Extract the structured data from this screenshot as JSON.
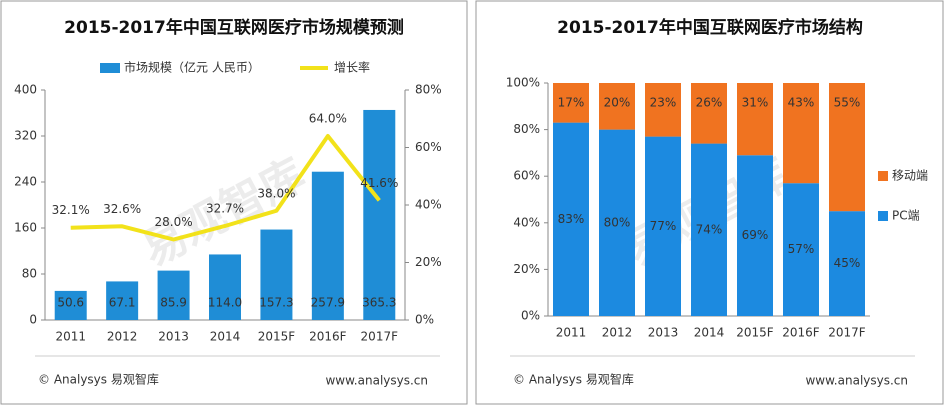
{
  "chart_data": [
    {
      "type": "bar",
      "title": "2015-2017年中国互联网医疗市场规模预测",
      "categories": [
        "2011",
        "2012",
        "2013",
        "2014",
        "2015F",
        "2016F",
        "2017F"
      ],
      "series": [
        {
          "name": "市场规模（亿元 人民币）",
          "color": "#1f8dd6",
          "values": [
            50.6,
            67.1,
            85.9,
            114.0,
            157.3,
            257.9,
            365.3
          ],
          "value_labels": [
            "50.6",
            "67.1",
            "85.9",
            "114.0",
            "157.3",
            "257.9",
            "365.3"
          ]
        },
        {
          "name": "增长率",
          "color": "#f2e21a",
          "axis": "y2",
          "values": [
            32.1,
            32.6,
            28.0,
            32.7,
            38.0,
            64.0,
            41.6
          ],
          "value_labels": [
            "32.1%",
            "32.6%",
            "28.0%",
            "32.7%",
            "38.0%",
            "64.0%",
            "41.6%"
          ]
        }
      ],
      "ylim": [
        0,
        400
      ],
      "yticks": [
        0,
        80,
        160,
        240,
        320,
        400
      ],
      "y2lim": [
        0,
        80
      ],
      "y2ticks": [
        {
          "value": 0,
          "label": "0%"
        },
        {
          "value": 20,
          "label": "20%"
        },
        {
          "value": 40,
          "label": "40%"
        },
        {
          "value": 60,
          "label": "60%"
        },
        {
          "value": 80,
          "label": "80%"
        }
      ],
      "watermark": "易观智库",
      "source": "© Analysys 易观智库",
      "url": "www.analysys.cn"
    },
    {
      "type": "stacked_bar",
      "title": "2015-2017年中国互联网医疗市场结构",
      "categories": [
        "2011",
        "2012",
        "2013",
        "2014",
        "2015F",
        "2016F",
        "2017F"
      ],
      "series": [
        {
          "name": "PC端",
          "color": "#1c8ae0",
          "values": [
            83,
            80,
            77,
            74,
            69,
            57,
            45
          ],
          "value_labels": [
            "83%",
            "80%",
            "77%",
            "74%",
            "69%",
            "57%",
            "45%"
          ]
        },
        {
          "name": "移动端",
          "color": "#f07320",
          "values": [
            17,
            20,
            23,
            26,
            31,
            43,
            55
          ],
          "value_labels": [
            "17%",
            "20%",
            "23%",
            "26%",
            "31%",
            "43%",
            "55%"
          ]
        }
      ],
      "ylim": [
        0,
        100
      ],
      "yticks": [
        {
          "value": 0,
          "label": "0%"
        },
        {
          "value": 20,
          "label": "20%"
        },
        {
          "value": 40,
          "label": "40%"
        },
        {
          "value": 60,
          "label": "60%"
        },
        {
          "value": 80,
          "label": "80%"
        },
        {
          "value": 100,
          "label": "100%"
        }
      ],
      "watermark": "易观智库",
      "source": "© Analysys 易观智库",
      "url": "www.analysys.cn"
    }
  ]
}
